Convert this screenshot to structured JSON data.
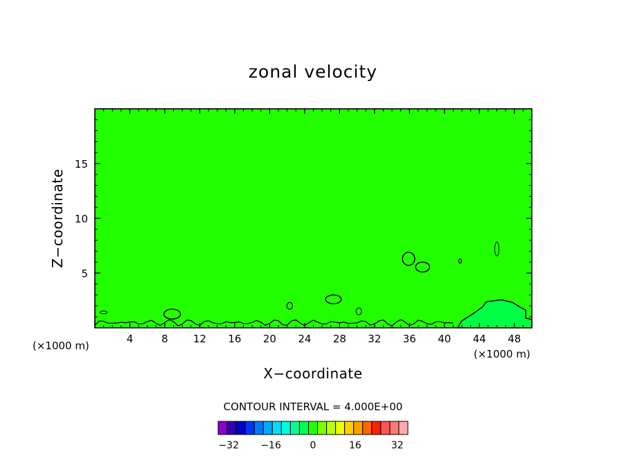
{
  "chart_data": {
    "type": "contour",
    "title": "zonal velocity",
    "xlabel": "X−coordinate",
    "ylabel": "Z−coordinate",
    "x_unit_left": "(×1000 m)",
    "x_unit_right": "(×1000 m)",
    "xlim": [
      0,
      50
    ],
    "ylim": [
      0,
      20
    ],
    "x_ticks": [
      4,
      8,
      12,
      16,
      20,
      24,
      28,
      32,
      36,
      40,
      44,
      48
    ],
    "x_tick_labels": [
      "4",
      "8",
      "12",
      "16",
      "20",
      "24",
      "28",
      "32",
      "36",
      "40",
      "44",
      "48"
    ],
    "y_ticks": [
      5,
      10,
      15
    ],
    "y_tick_labels": [
      "5",
      "10",
      "15"
    ],
    "background_level": 0,
    "background_color": "#22ff00",
    "contour_interval_text": "CONTOUR INTERVAL = 4.000E+00",
    "colorbar": {
      "min": -36,
      "max": 36,
      "step": 4,
      "labels": [
        -32,
        -16,
        0,
        16,
        32
      ],
      "label_text": [
        "−32",
        "−16",
        "0",
        "16",
        "32"
      ],
      "colors": [
        "#8a00cc",
        "#3000b0",
        "#0000cc",
        "#0033ff",
        "#0077ff",
        "#00aaff",
        "#00ddff",
        "#00ffdd",
        "#00ff99",
        "#00ff55",
        "#22ff00",
        "#77ff00",
        "#bbff00",
        "#eeff00",
        "#ffd000",
        "#ffa000",
        "#ff6600",
        "#ff2200",
        "#ff5555",
        "#ff7777",
        "#ffaaaa"
      ]
    },
    "features": [
      {
        "name": "positive-region-near-x46",
        "x": [
          41.5,
          50
        ],
        "z": [
          0,
          2.5
        ],
        "level": 4,
        "color": "#00ff44"
      },
      {
        "name": "blob-x37",
        "x": [
          35.2,
          36.6
        ],
        "z": [
          5.7,
          6.9
        ]
      },
      {
        "name": "blob-x38",
        "x": [
          36.7,
          38.3
        ],
        "z": [
          5.1,
          6.0
        ]
      },
      {
        "name": "blob-x27",
        "x": [
          26.4,
          28.2
        ],
        "z": [
          2.2,
          3.0
        ]
      },
      {
        "name": "blob-x9",
        "x": [
          7.9,
          9.8
        ],
        "z": [
          0.8,
          1.7
        ]
      }
    ]
  }
}
